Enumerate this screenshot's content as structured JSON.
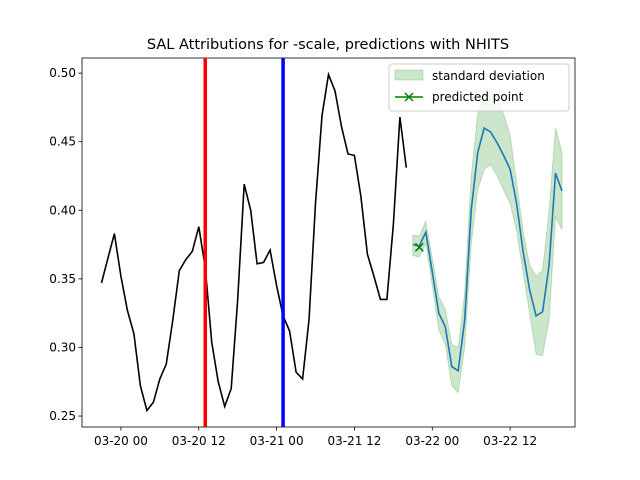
{
  "chart_data": {
    "type": "line",
    "title": "SAL Attributions for -scale, predictions with NHITS",
    "xlim": [
      "03-19 18",
      "03-22 22"
    ],
    "xticks": [
      "03-20 00",
      "03-20 12",
      "03-21 00",
      "03-21 12",
      "03-22 00",
      "03-22 12"
    ],
    "ylim": [
      0.242,
      0.511
    ],
    "yticks": [
      0.25,
      {
        "value": 0.3,
        "label": "0.30"
      },
      0.35,
      {
        "value": 0.4,
        "label": "0.40"
      },
      0.45,
      {
        "value": 0.5,
        "label": "0.50"
      }
    ],
    "vlines": [
      {
        "x": "03-20 13",
        "color": "#ff0000"
      },
      {
        "x": "03-21 01",
        "color": "#0000ff"
      }
    ],
    "history": {
      "color": "#000000",
      "start": "03-19 21",
      "values": [
        0.347,
        0.365,
        0.383,
        0.352,
        0.327,
        0.31,
        0.272,
        0.254,
        0.26,
        0.277,
        0.288,
        0.32,
        0.356,
        0.364,
        0.37,
        0.388,
        0.358,
        0.304,
        0.275,
        0.257,
        0.27,
        0.335,
        0.419,
        0.4,
        0.361,
        0.362,
        0.371,
        0.345,
        0.323,
        0.312,
        0.282,
        0.277,
        0.32,
        0.405,
        0.469,
        0.499,
        0.487,
        0.461,
        0.441,
        0.44,
        0.41,
        0.368,
        0.352,
        0.335,
        0.335,
        0.39,
        0.468,
        0.431
      ]
    },
    "prediction": {
      "color": "#1f77b4",
      "start": "03-21 21",
      "values": [
        0.375,
        0.374,
        0.384,
        0.355,
        0.325,
        0.315,
        0.286,
        0.283,
        0.32,
        0.4,
        0.442,
        0.46,
        0.457,
        0.449,
        0.44,
        0.43,
        0.405,
        0.37,
        0.342,
        0.323,
        0.326,
        0.36,
        0.427,
        0.414
      ],
      "upper": [
        0.382,
        0.381,
        0.392,
        0.365,
        0.337,
        0.328,
        0.302,
        0.3,
        0.34,
        0.425,
        0.47,
        0.49,
        0.487,
        0.48,
        0.47,
        0.455,
        0.42,
        0.385,
        0.36,
        0.352,
        0.356,
        0.4,
        0.46,
        0.442
      ],
      "lower": [
        0.367,
        0.366,
        0.376,
        0.345,
        0.313,
        0.302,
        0.272,
        0.267,
        0.3,
        0.375,
        0.415,
        0.43,
        0.433,
        0.425,
        0.415,
        0.405,
        0.385,
        0.355,
        0.325,
        0.295,
        0.294,
        0.32,
        0.395,
        0.386
      ]
    },
    "band_color": "#008000",
    "point": {
      "x": "03-21 22",
      "y": 0.373,
      "color": "#008000"
    },
    "legend": [
      "standard deviation",
      "predicted point"
    ]
  }
}
